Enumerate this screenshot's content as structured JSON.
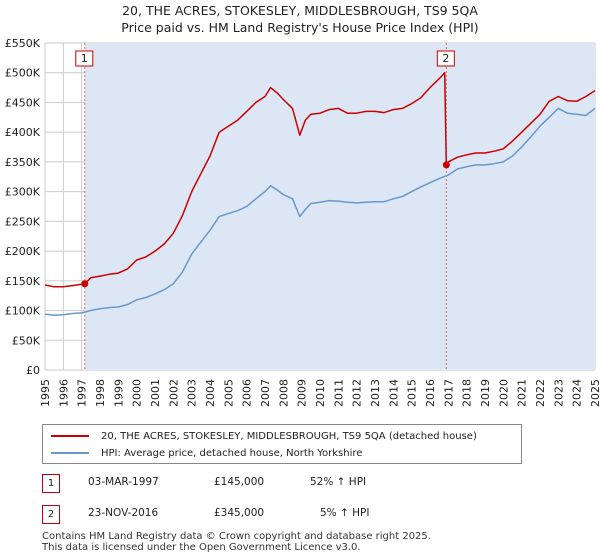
{
  "title_line1": "20, THE ACRES, STOKESLEY, MIDDLESBROUGH, TS9 5QA",
  "title_line2": "Price paid vs. HM Land Registry's House Price Index (HPI)",
  "colors": {
    "property": "#cc0000",
    "hpi": "#6699cc",
    "shade": "#dde6f4",
    "grid": "#cccccc",
    "marker_line": "#e06666"
  },
  "legend": {
    "property_label": "20, THE ACRES, STOKESLEY, MIDDLESBROUGH, TS9 5QA (detached house)",
    "hpi_label": "HPI: Average price, detached house, North Yorkshire"
  },
  "transactions": [
    {
      "id": "1",
      "date": "03-MAR-1997",
      "price": "£145,000",
      "hpi_change": "52% ↑ HPI"
    },
    {
      "id": "2",
      "date": "23-NOV-2016",
      "price": "£345,000",
      "hpi_change": "5% ↑ HPI"
    }
  ],
  "footer_line1": "Contains HM Land Registry data © Crown copyright and database right 2025.",
  "footer_line2": "This data is licensed under the Open Government Licence v3.0.",
  "chart_data": {
    "type": "line",
    "title": "20, THE ACRES, STOKESLEY, MIDDLESBROUGH, TS9 5QA — Price paid vs. HM Land Registry's House Price Index (HPI)",
    "xlim": [
      1995,
      2025
    ],
    "ylim": [
      0,
      550000
    ],
    "x_ticks": [
      1995,
      1996,
      1997,
      1998,
      1999,
      2000,
      2001,
      2002,
      2003,
      2004,
      2005,
      2006,
      2007,
      2008,
      2009,
      2010,
      2011,
      2012,
      2013,
      2014,
      2015,
      2016,
      2017,
      2018,
      2019,
      2020,
      2021,
      2022,
      2023,
      2024,
      2025
    ],
    "x_tick_labels": [
      "1995",
      "1996",
      "1997",
      "1998",
      "1999",
      "2000",
      "2001",
      "2002",
      "2003",
      "2004",
      "2005",
      "2006",
      "2007",
      "2008",
      "2009",
      "2010",
      "2011",
      "2012",
      "2013",
      "2014",
      "2015",
      "2016",
      "2017",
      "2018",
      "2019",
      "2020",
      "2021",
      "2022",
      "2023",
      "2024",
      "2025"
    ],
    "y_ticks": [
      0,
      50000,
      100000,
      150000,
      200000,
      250000,
      300000,
      350000,
      400000,
      450000,
      500000,
      550000
    ],
    "y_tick_labels": [
      "£0",
      "£50K",
      "£100K",
      "£150K",
      "£200K",
      "£250K",
      "£300K",
      "£350K",
      "£400K",
      "£450K",
      "£500K",
      "£550K"
    ],
    "grid": true,
    "shaded_since": 2025.0,
    "sales": [
      {
        "label": "1",
        "x": 1997.17,
        "y": 145000
      },
      {
        "label": "2",
        "x": 2016.89,
        "y": 345000
      }
    ],
    "series": [
      {
        "name": "20, THE ACRES, STOKESLEY, MIDDLESBROUGH, TS9 5QA (detached house)",
        "x": [
          1995.0,
          1995.5,
          1996.0,
          1996.5,
          1997.17,
          1997.5,
          1998.0,
          1998.5,
          1999.0,
          1999.5,
          2000.0,
          2000.5,
          2001.0,
          2001.5,
          2002.0,
          2002.5,
          2003.0,
          2003.5,
          2004.0,
          2004.5,
          2005.0,
          2005.5,
          2006.0,
          2006.5,
          2007.0,
          2007.3,
          2007.7,
          2008.0,
          2008.5,
          2008.9,
          2009.2,
          2009.5,
          2010.0,
          2010.5,
          2011.0,
          2011.5,
          2012.0,
          2012.5,
          2013.0,
          2013.5,
          2014.0,
          2014.5,
          2015.0,
          2015.5,
          2016.0,
          2016.5,
          2016.8,
          2016.89,
          2017.0,
          2017.5,
          2018.0,
          2018.5,
          2019.0,
          2019.5,
          2020.0,
          2020.5,
          2021.0,
          2021.5,
          2022.0,
          2022.5,
          2023.0,
          2023.5,
          2024.0,
          2024.5,
          2025.0
        ],
        "y": [
          143000,
          140000,
          140000,
          142000,
          145000,
          155000,
          158000,
          161000,
          163000,
          170000,
          185000,
          190000,
          200000,
          212000,
          230000,
          260000,
          300000,
          330000,
          360000,
          400000,
          410000,
          420000,
          435000,
          450000,
          460000,
          475000,
          465000,
          455000,
          440000,
          395000,
          420000,
          430000,
          432000,
          438000,
          440000,
          432000,
          432000,
          435000,
          435000,
          433000,
          438000,
          440000,
          448000,
          458000,
          475000,
          490000,
          500000,
          345000,
          350000,
          358000,
          362000,
          365000,
          365000,
          368000,
          372000,
          385000,
          400000,
          415000,
          430000,
          452000,
          460000,
          453000,
          452000,
          460000,
          470000
        ]
      },
      {
        "name": "HPI: Average price, detached house, North Yorkshire",
        "x": [
          1995.0,
          1995.5,
          1996.0,
          1996.5,
          1997.0,
          1997.5,
          1998.0,
          1998.5,
          1999.0,
          1999.5,
          2000.0,
          2000.5,
          2001.0,
          2001.5,
          2002.0,
          2002.5,
          2003.0,
          2003.5,
          2004.0,
          2004.5,
          2005.0,
          2005.5,
          2006.0,
          2006.5,
          2007.0,
          2007.3,
          2007.7,
          2008.0,
          2008.5,
          2008.9,
          2009.2,
          2009.5,
          2010.0,
          2010.5,
          2011.0,
          2011.5,
          2012.0,
          2012.5,
          2013.0,
          2013.5,
          2014.0,
          2014.5,
          2015.0,
          2015.5,
          2016.0,
          2016.5,
          2017.0,
          2017.5,
          2018.0,
          2018.5,
          2019.0,
          2019.5,
          2020.0,
          2020.5,
          2021.0,
          2021.5,
          2022.0,
          2022.5,
          2023.0,
          2023.5,
          2024.0,
          2024.5,
          2025.0
        ],
        "y": [
          94000,
          92000,
          93000,
          95000,
          96000,
          100000,
          103000,
          105000,
          106000,
          110000,
          118000,
          122000,
          128000,
          135000,
          145000,
          165000,
          195000,
          215000,
          235000,
          258000,
          263000,
          268000,
          275000,
          288000,
          300000,
          310000,
          302000,
          295000,
          288000,
          258000,
          270000,
          280000,
          282000,
          285000,
          284000,
          282000,
          281000,
          282000,
          283000,
          283000,
          288000,
          292000,
          300000,
          308000,
          315000,
          322000,
          328000,
          338000,
          342000,
          345000,
          345000,
          347000,
          350000,
          360000,
          375000,
          392000,
          410000,
          425000,
          440000,
          432000,
          430000,
          428000,
          440000
        ]
      }
    ]
  }
}
